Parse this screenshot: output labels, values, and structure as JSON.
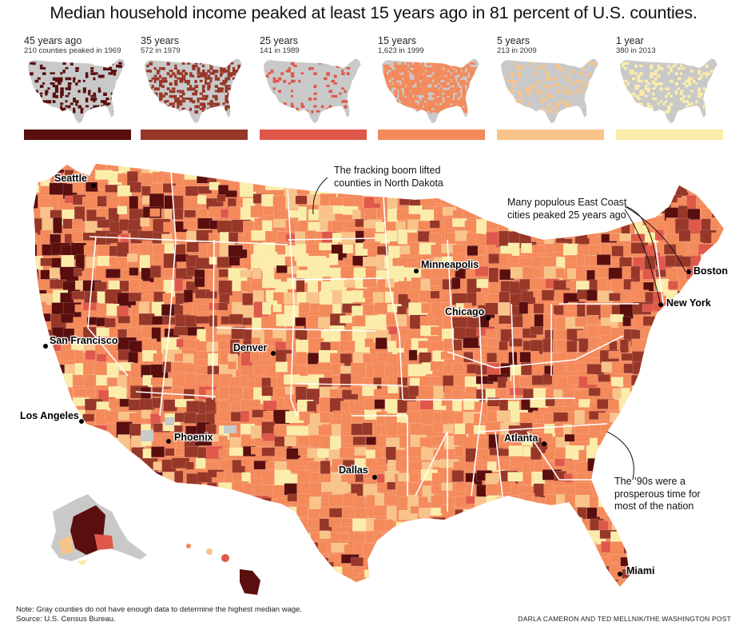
{
  "title": "Median household income peaked at least 15 years ago in 81 percent of U.S. counties.",
  "legend": [
    {
      "label": "45 years ago",
      "sub": "210 counties peaked in 1969",
      "color": "#5a0e0e"
    },
    {
      "label": "35 years",
      "sub": "572 in 1979",
      "color": "#973728"
    },
    {
      "label": "25 years",
      "sub": "141 in 1989",
      "color": "#e0584a"
    },
    {
      "label": "15 years",
      "sub": "1,623 in 1999",
      "color": "#f4895a"
    },
    {
      "label": "5 years",
      "sub": "213 in 2009",
      "color": "#f8c48a"
    },
    {
      "label": "1 year",
      "sub": "380 in 2013",
      "color": "#fbeda9"
    }
  ],
  "colors": {
    "no_data": "#c9c9c9",
    "state_border": "#ffffff"
  },
  "cities": {
    "seattle": "Seattle",
    "minneapolis": "Minneapolis",
    "boston": "Boston",
    "new_york": "New York",
    "chicago": "Chicago",
    "san_francisco": "San Francisco",
    "denver": "Denver",
    "los_angeles": "Los Angeles",
    "phoenix": "Phoenix",
    "atlanta": "Atlanta",
    "dallas": "Dallas",
    "miami": "Miami"
  },
  "annotations": {
    "fracking": "The fracking boom lifted counties in North Dakota",
    "east_coast": "Many populous East Coast cities peaked 25 years ago",
    "nineties": "The ’90s were a prosperous time for most of the nation"
  },
  "note_line1": "Note: Gray counties do not have enough data to determine the highest median wage.",
  "note_line2": "Source: U.S. Census Bureau.",
  "credit": "DARLA CAMERON AND TED MELLNIK/THE WASHINGTON POST"
}
